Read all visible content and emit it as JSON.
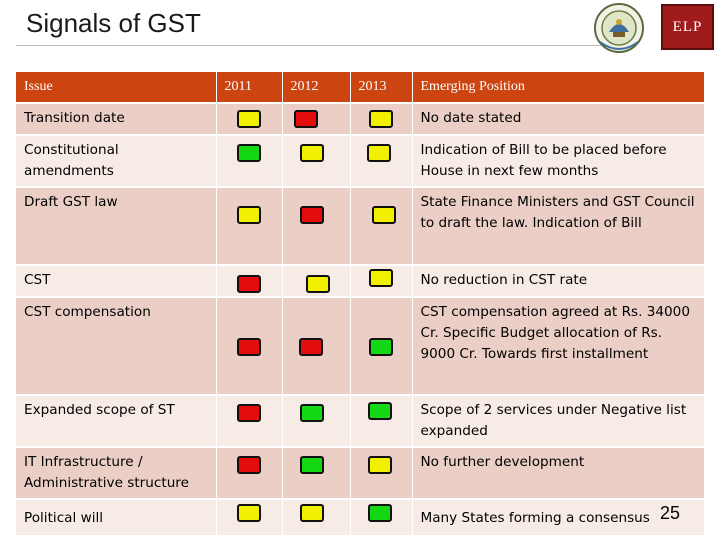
{
  "title": "Signals of GST",
  "logo": {
    "label": "ELP"
  },
  "headers": {
    "issue": "Issue",
    "y2011": "2011",
    "y2012": "2012",
    "y2013": "2013",
    "position": "Emerging Position"
  },
  "rows": [
    {
      "issue": "Transition date",
      "s2011": "yellow",
      "s2012": "red",
      "s2013": "yellow",
      "position": "No date stated"
    },
    {
      "issue": "Constitutional amendments",
      "s2011": "green",
      "s2012": "yellow",
      "s2013": "yellow",
      "position": "Indication of Bill to be placed before House in next few months"
    },
    {
      "issue": "Draft  GST law",
      "s2011": "yellow",
      "s2012": "red",
      "s2013": "yellow",
      "position": "State Finance Ministers and GST Council to draft the law. Indication of Bill"
    },
    {
      "issue": "CST",
      "s2011": "red",
      "s2012": "yellow",
      "s2013": "yellow",
      "position": "No reduction in CST rate"
    },
    {
      "issue": "CST compensation",
      "s2011": "red",
      "s2012": "red",
      "s2013": "green",
      "position": "CST  compensation agreed at Rs. 34000 Cr. Specific Budget allocation of Rs. 9000 Cr. Towards first installment"
    },
    {
      "issue": "Expanded scope of ST",
      "s2011": "red",
      "s2012": "green",
      "s2013": "green",
      "position": "Scope of 2 services under Negative list expanded"
    },
    {
      "issue": "IT Infrastructure / Administrative structure",
      "s2011": "red",
      "s2012": "green",
      "s2013": "yellow",
      "position": "No further development"
    },
    {
      "issue": "Political will",
      "s2011": "yellow",
      "s2012": "yellow",
      "s2013": "green",
      "position": "Many States forming a consensus"
    }
  ],
  "page_number": "25"
}
